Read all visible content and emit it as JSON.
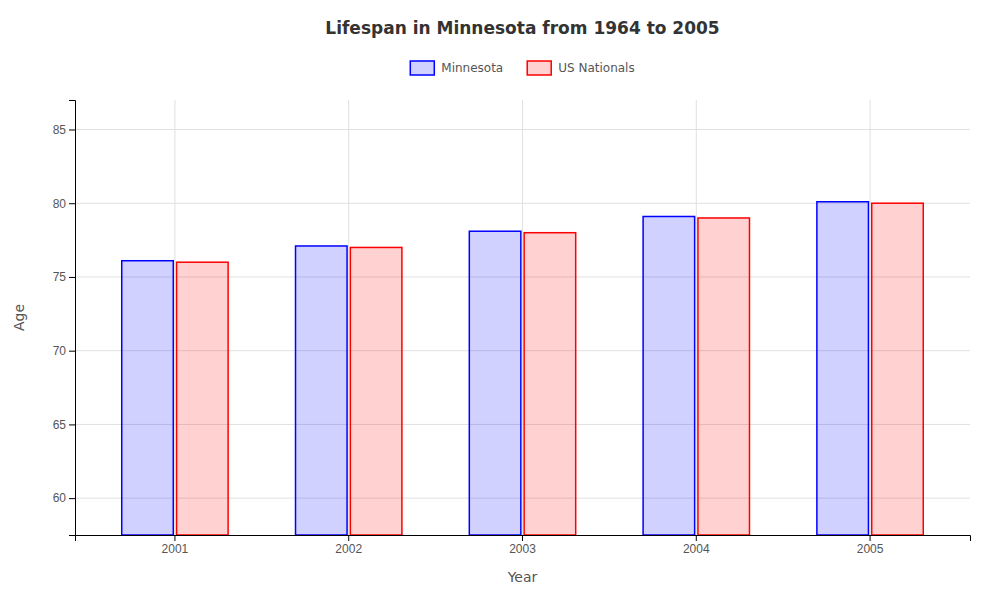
{
  "chart_data": {
    "type": "bar",
    "title": "Lifespan in Minnesota from 1964 to 2005",
    "xlabel": "Year",
    "ylabel": "Age",
    "categories": [
      "2001",
      "2002",
      "2003",
      "2004",
      "2005"
    ],
    "series": [
      {
        "name": "Minnesota",
        "color": "#0000ff",
        "values": [
          76.1,
          77.1,
          78.1,
          79.1,
          80.1
        ]
      },
      {
        "name": "US Nationals",
        "color": "#ff0000",
        "values": [
          76.0,
          77.0,
          78.0,
          79.0,
          80.0
        ]
      }
    ],
    "ylim": [
      57.5,
      87
    ],
    "yticks": [
      60,
      65,
      70,
      75,
      80,
      85
    ],
    "grid": true,
    "legend": "top"
  }
}
